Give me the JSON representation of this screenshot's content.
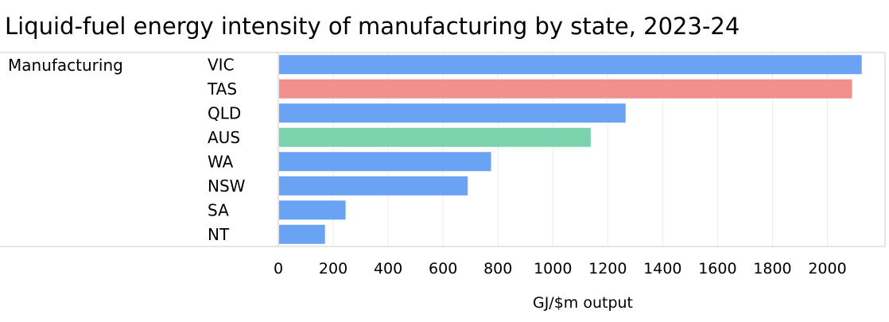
{
  "chart_data": {
    "type": "bar",
    "orientation": "horizontal",
    "title": "Liquid-fuel energy intensity of manufacturing by state, 2023-24",
    "group_label": "Manufacturing",
    "categories": [
      "VIC",
      "TAS",
      "QLD",
      "AUS",
      "WA",
      "NSW",
      "SA",
      "NT"
    ],
    "values": [
      2125,
      2090,
      1265,
      1138,
      775,
      690,
      245,
      170
    ],
    "bar_color_keys": [
      "state",
      "highlight",
      "state",
      "national",
      "state",
      "state",
      "state",
      "state"
    ],
    "colors": {
      "state": "#6aa2f4",
      "highlight": "#f28f8f",
      "national": "#7ad3ac"
    },
    "xlabel": "GJ/$m output",
    "xlim": [
      0,
      2210
    ],
    "xticks": [
      0,
      200,
      400,
      600,
      800,
      1000,
      1200,
      1400,
      1600,
      1800,
      2000
    ],
    "grid": true
  }
}
